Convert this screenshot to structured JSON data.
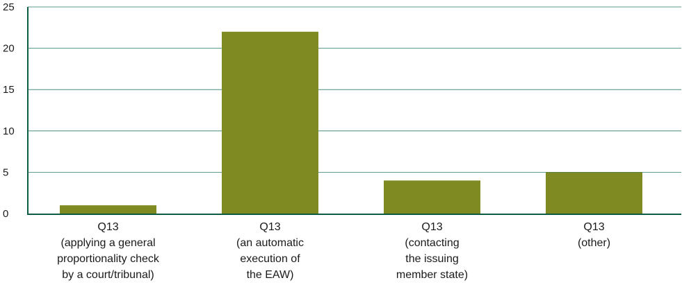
{
  "chart_data": {
    "type": "bar",
    "categories": [
      [
        "Q13",
        "(applying a general",
        "proportionality check",
        "by a court/tribunal)"
      ],
      [
        "Q13",
        "(an automatic",
        "execution of",
        "the EAW)"
      ],
      [
        "Q13",
        "(contacting",
        "the issuing",
        "member state)"
      ],
      [
        "Q13",
        "(other)"
      ]
    ],
    "values": [
      1,
      22,
      4,
      5
    ],
    "ylim": [
      0,
      25
    ],
    "yticks": [
      "0",
      "5",
      "10",
      "15",
      "20",
      "25"
    ],
    "grid": true,
    "legend": "none",
    "title": "",
    "xlabel": "",
    "ylabel": ""
  },
  "colors": {
    "bar": "#7f8b22",
    "gridline": "#2a7a6a",
    "axis": "#0b5a44",
    "text": "#1a1a1a"
  }
}
